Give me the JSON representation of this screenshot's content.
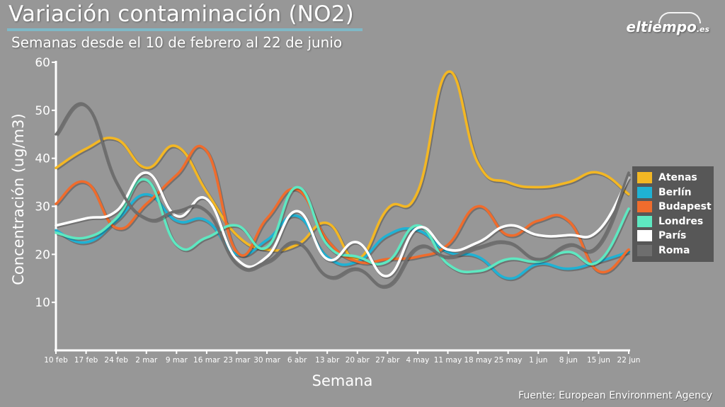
{
  "header": {
    "title": "Variación contaminación (NO2)",
    "subtitle": "Semanas desde el 10 de febrero al 22 de junio",
    "brand_main": "eltiempo",
    "brand_suffix": ".es",
    "source": "Fuente: European Environment Agency"
  },
  "chart_data": {
    "type": "line",
    "title": "Variación contaminación (NO2)",
    "subtitle": "Semanas desde el 10 de febrero al 22 de junio",
    "xlabel": "Semana",
    "ylabel": "Concentración (ug/m3)",
    "ylim": [
      0,
      60
    ],
    "yticks": [
      10,
      20,
      30,
      40,
      50,
      60
    ],
    "grid": false,
    "legend_position": "right",
    "x": [
      "10 feb",
      "17 feb",
      "24 feb",
      "2 mar",
      "9 mar",
      "16 mar",
      "23 mar",
      "30 mar",
      "6 abr",
      "13 abr",
      "20 abr",
      "27 abr",
      "4 may",
      "11 may",
      "18 may",
      "25 may",
      "1 jun",
      "8 jun",
      "15 jun",
      "22 jun"
    ],
    "series": [
      {
        "name": "Atenas",
        "color": "#f3b724",
        "values": [
          38,
          42,
          44,
          38,
          42.5,
          33,
          24,
          21,
          22,
          26.5,
          19,
          29.5,
          33,
          58,
          39,
          35,
          34,
          35,
          37,
          32.5
        ]
      },
      {
        "name": "Berlín",
        "color": "#1fb2d4",
        "values": [
          25,
          22.5,
          27,
          32.5,
          27,
          27,
          20,
          23,
          28,
          19.5,
          18.5,
          24,
          25,
          20.5,
          19.5,
          15,
          18,
          17,
          18.5,
          20.5
        ]
      },
      {
        "name": "Budapest",
        "color": "#ef6c2d",
        "values": [
          30.5,
          35,
          25.5,
          30.5,
          36.5,
          41.5,
          20.5,
          27.5,
          33.5,
          23,
          18.5,
          19,
          19.5,
          22,
          30,
          24,
          27,
          27,
          16.5,
          21
        ]
      },
      {
        "name": "Londres",
        "color": "#5ee8c1",
        "values": [
          24.5,
          23.5,
          27.5,
          35.5,
          22,
          23.5,
          26,
          21.5,
          34,
          22,
          19.5,
          18.5,
          26,
          18,
          16.5,
          19,
          18.5,
          20.5,
          18.5,
          29.5
        ]
      },
      {
        "name": "París",
        "color": "#ffffff",
        "values": [
          26,
          27.5,
          29,
          37,
          28,
          31.5,
          19,
          19.5,
          29,
          19,
          22.5,
          15.5,
          25.5,
          21,
          22.5,
          26,
          24,
          24,
          25,
          36
        ]
      },
      {
        "name": "Roma",
        "color": "#6e6e6e",
        "values": [
          45,
          51,
          35,
          27.5,
          29,
          29,
          18,
          18.5,
          22.5,
          15.5,
          17,
          13.5,
          21.5,
          19.5,
          21.5,
          22.5,
          19,
          22,
          22,
          37
        ]
      }
    ]
  }
}
